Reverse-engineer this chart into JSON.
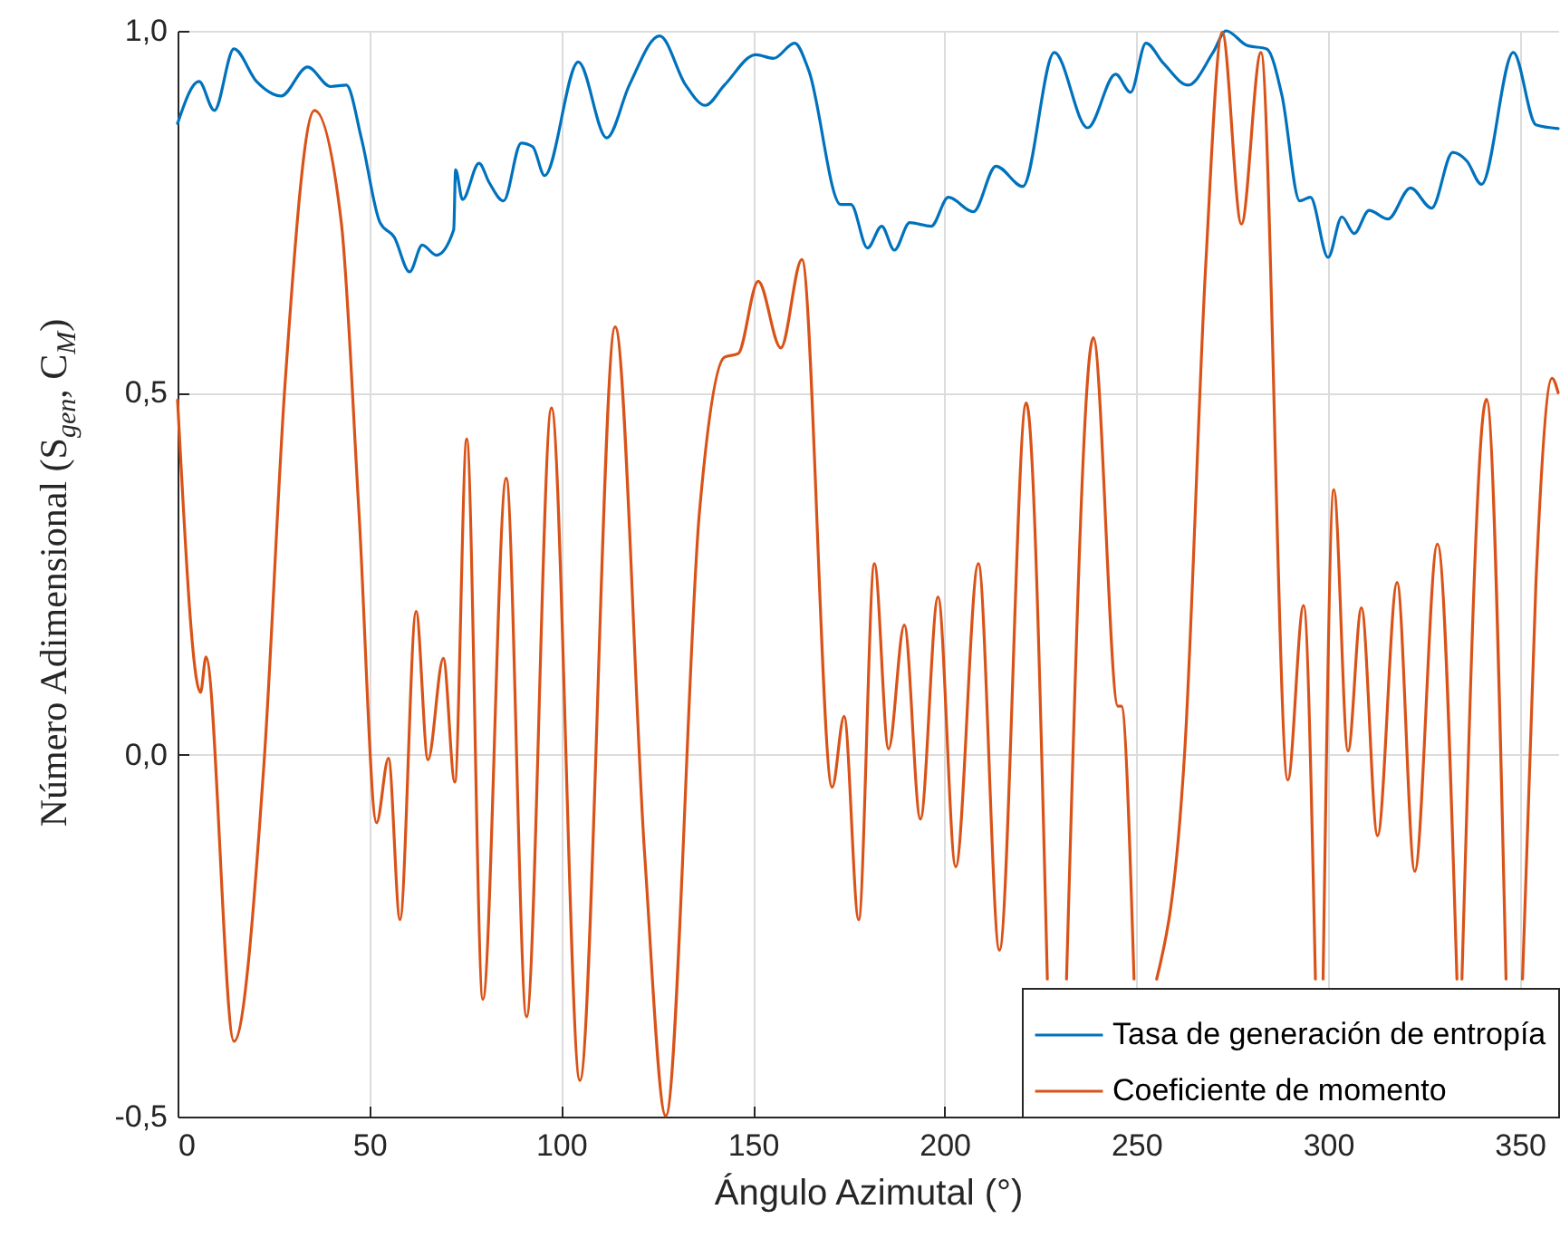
{
  "chart_data": {
    "type": "line",
    "xlabel": "Ángulo Azimutal (°)",
    "ylabel": "Número Adimensional (S$_{gen}$, C$_{M}$)",
    "xlim": [
      0,
      360
    ],
    "xticks": [
      0,
      50,
      100,
      150,
      200,
      250,
      300,
      350
    ],
    "ylim": [
      -0.5,
      1
    ],
    "yticks": [
      {
        "value": -0.5,
        "label": "-0,5"
      },
      {
        "value": 0,
        "label": "0,0"
      },
      {
        "value": 0.5,
        "label": "0,5"
      },
      {
        "value": 1,
        "label": "1,0"
      }
    ],
    "grid": true,
    "legend": "bottom right",
    "line_style": "solid",
    "marker": "none",
    "series": [
      {
        "name": "Tasa de generación de entropía",
        "color": "#0072bd",
        "x": [
          0,
          5.6,
          9.6,
          14.7,
          20.6,
          27,
          33.9,
          39.9,
          44,
          48,
          52.8,
          56.5,
          60.5,
          63.8,
          67.5,
          72,
          72.5,
          74.3,
          78.6,
          81.3,
          85,
          89.6,
          92.6,
          95.7,
          104.5,
          111.9,
          117.8,
          125.7,
          132.5,
          137.6,
          142.6,
          150.8,
          155.4,
          160.9,
          164.6,
          172.9,
          175.6,
          179.9,
          183.6,
          186.9,
          190.9,
          196.5,
          201,
          207.5,
          213.4,
          220.4,
          228.6,
          237.3,
          244.6,
          248.5,
          252.5,
          257.1,
          263.5,
          270,
          273.4,
          278.8,
          284,
          288,
          292.6,
          295.4,
          300,
          303.6,
          306.8,
          310.7,
          315.6,
          321.5,
          327,
          332.5,
          336.2,
          340,
          348.3,
          354.2,
          360
        ],
        "values": [
          0.872,
          0.93,
          0.89,
          0.975,
          0.93,
          0.91,
          0.95,
          0.923,
          0.925,
          0.85,
          0.735,
          0.715,
          0.667,
          0.704,
          0.69,
          0.725,
          0.808,
          0.767,
          0.817,
          0.79,
          0.765,
          0.845,
          0.84,
          0.8,
          0.957,
          0.852,
          0.925,
          0.993,
          0.925,
          0.897,
          0.925,
          0.967,
          0.962,
          0.983,
          0.945,
          0.76,
          0.76,
          0.7,
          0.73,
          0.697,
          0.735,
          0.73,
          0.77,
          0.75,
          0.813,
          0.785,
          0.97,
          0.866,
          0.94,
          0.915,
          0.983,
          0.955,
          0.925,
          0.97,
          1.0,
          0.98,
          0.975,
          0.91,
          0.765,
          0.77,
          0.687,
          0.743,
          0.72,
          0.752,
          0.74,
          0.783,
          0.755,
          0.832,
          0.82,
          0.788,
          0.97,
          0.87,
          0.865
        ]
      },
      {
        "name": "Coeficiente de momento",
        "color": "#d95319",
        "x": [
          0,
          6,
          7.4,
          14.7,
          22.5,
          28,
          35.7,
          42.7,
          47.3,
          51.9,
          55,
          58,
          62.2,
          65.3,
          69.3,
          72.3,
          75.4,
          79.6,
          85.7,
          91,
          97.5,
          104.9,
          114.1,
          121.8,
          127.3,
          136.1,
          142.6,
          146.2,
          151.4,
          157.3,
          162.8,
          170.7,
          173.8,
          177.6,
          181.7,
          185.4,
          189.5,
          193.7,
          198.3,
          202.9,
          208.8,
          214.3,
          221.3,
          226.8,
          229,
          231.8,
          238.8,
          245.2,
          246.1,
          249.4,
          252,
          255.3,
          262.6,
          268.1,
          272.4,
          277.4,
          282.5,
          289.5,
          293.6,
          296.7,
          297.7,
          298.7,
          301.5,
          305.2,
          308.7,
          312.9,
          318,
          322.6,
          328.5,
          333.6,
          334.3,
          334.9,
          341.3,
          346.4,
          348,
          350.7,
          354.2,
          358.4,
          360
        ],
        "values": [
          0.49,
          0.086,
          0.135,
          -0.396,
          -0.015,
          0.51,
          0.89,
          0.735,
          0.335,
          -0.094,
          -0.005,
          -0.228,
          0.198,
          -0.007,
          0.133,
          -0.038,
          0.436,
          -0.338,
          0.382,
          -0.362,
          0.479,
          -0.45,
          0.591,
          -0.138,
          -0.499,
          0.336,
          0.549,
          0.554,
          0.654,
          0.562,
          0.684,
          -0.045,
          0.053,
          -0.228,
          0.264,
          0.008,
          0.179,
          -0.089,
          0.218,
          -0.155,
          0.264,
          -0.27,
          0.486,
          -0.31,
          null,
          -0.31,
          0.576,
          0.067,
          0.067,
          -0.31,
          null,
          -0.31,
          0.003,
          0.677,
          0.998,
          0.733,
          0.97,
          -0.035,
          0.206,
          -0.31,
          null,
          -0.31,
          0.366,
          0.005,
          0.203,
          -0.112,
          0.238,
          -0.161,
          0.291,
          -0.31,
          null,
          -0.31,
          0.491,
          -0.31,
          null,
          -0.31,
          0.238,
          0.52,
          0.5
        ]
      }
    ]
  }
}
